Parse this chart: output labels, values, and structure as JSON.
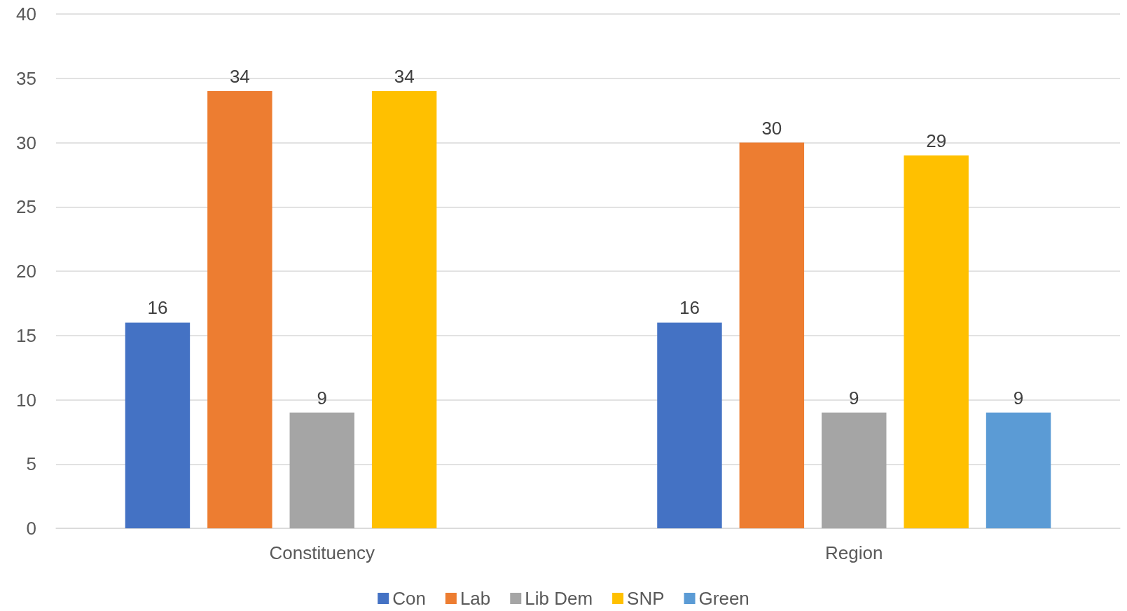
{
  "chart_data": {
    "type": "bar",
    "categories": [
      "Constituency",
      "Region"
    ],
    "series": [
      {
        "name": "Con",
        "color": "#4472c4",
        "values": [
          16,
          16
        ]
      },
      {
        "name": "Lab",
        "color": "#ed7d31",
        "values": [
          34,
          30
        ]
      },
      {
        "name": "Lib Dem",
        "color": "#a5a5a5",
        "values": [
          9,
          9
        ]
      },
      {
        "name": "SNP",
        "color": "#ffc000",
        "values": [
          34,
          29
        ]
      },
      {
        "name": "Green",
        "color": "#5b9bd5",
        "values": [
          null,
          9
        ]
      }
    ],
    "ylim": [
      0,
      40
    ],
    "yticks": [
      0,
      5,
      10,
      15,
      20,
      25,
      30,
      35,
      40
    ],
    "grid": "y",
    "legend": "bottom",
    "data_labels": true
  }
}
